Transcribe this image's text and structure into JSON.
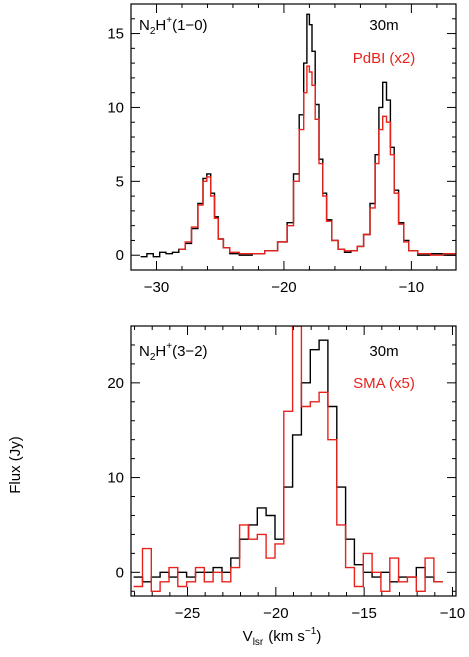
{
  "figure": {
    "ylabel": "Flux (Jy)",
    "xlabel": "V",
    "xlabel_sub": "lsr",
    "xlabel_units": "(km s",
    "xlabel_sup": "−1",
    "xlabel_close": ")"
  },
  "colors": {
    "single_dish": "#000000",
    "interferometer": "#e8231c"
  },
  "chart_data": [
    {
      "type": "line",
      "step": true,
      "label_main": "N",
      "label_sub": "2",
      "label_h": "H",
      "label_sup": "+",
      "label_trans": "(1−0)",
      "xlim": [
        -32,
        -6.5
      ],
      "ylim": [
        -1,
        17
      ],
      "xticks": [
        -30,
        -20,
        -10
      ],
      "xtick_labels": [
        "−30",
        "−20",
        "−10"
      ],
      "yticks": [
        0,
        5,
        10,
        15
      ],
      "ytick_labels": [
        "0",
        "5",
        "10",
        "15"
      ],
      "series": [
        {
          "name": "30m",
          "color": "#000000",
          "x": [
            -31,
            -30.5,
            -30,
            -29.5,
            -29,
            -28.5,
            -28,
            -27.5,
            -27,
            -26.5,
            -26.2,
            -25.9,
            -25.6,
            -25.3,
            -25,
            -24.5,
            -24,
            -23,
            -22,
            -21,
            -20,
            -19.5,
            -19,
            -18.6,
            -18.3,
            -18.1,
            -17.9,
            -17.7,
            -17.4,
            -17.1,
            -16.8,
            -16.5,
            -16,
            -15.5,
            -15,
            -14.5,
            -14,
            -13.5,
            -13,
            -12.7,
            -12.4,
            -12.1,
            -11.8,
            -11.5,
            -11.2,
            -10.8,
            -10.4,
            -10,
            -9,
            -8,
            -7
          ],
          "y": [
            -0.1,
            0.1,
            -0.1,
            0.2,
            0.1,
            0.2,
            0.4,
            0.8,
            1.8,
            3.5,
            5.2,
            5.5,
            4.2,
            2.6,
            1.1,
            0.5,
            0.1,
            0.0,
            0.1,
            0.3,
            0.9,
            2.2,
            5.5,
            9.5,
            13.0,
            16.3,
            15.6,
            13.8,
            10.2,
            6.5,
            4.2,
            2.4,
            1.0,
            0.4,
            0.2,
            0.3,
            0.6,
            1.4,
            3.5,
            6.8,
            10.0,
            11.7,
            10.5,
            7.3,
            4.4,
            2.2,
            1.0,
            0.3,
            0.0,
            0.1,
            0.0
          ]
        },
        {
          "name": "PdBI (x2)",
          "color": "#e8231c",
          "x": [
            -28,
            -27.5,
            -27,
            -26.5,
            -26.2,
            -25.9,
            -25.6,
            -25.3,
            -25,
            -24.5,
            -24,
            -23,
            -22,
            -21,
            -20,
            -19.5,
            -19,
            -18.6,
            -18.3,
            -18.1,
            -17.9,
            -17.7,
            -17.4,
            -17.1,
            -16.8,
            -16.5,
            -16,
            -15.5,
            -15,
            -14.5,
            -14,
            -13.5,
            -13,
            -12.7,
            -12.4,
            -12.1,
            -11.8,
            -11.5,
            -11.2,
            -10.8,
            -10.4,
            -10,
            -9,
            -8,
            -7
          ],
          "y": [
            0.4,
            0.9,
            1.9,
            3.4,
            5.0,
            5.3,
            4.0,
            2.5,
            1.1,
            0.5,
            0.2,
            0.1,
            0.1,
            0.3,
            0.9,
            2.0,
            5.0,
            8.5,
            11.0,
            12.8,
            12.4,
            11.5,
            9.2,
            6.2,
            4.0,
            2.3,
            1.0,
            0.4,
            0.3,
            0.3,
            0.6,
            1.4,
            3.2,
            6.2,
            8.5,
            9.4,
            9.0,
            6.8,
            4.2,
            2.1,
            0.9,
            0.3,
            0.1,
            0.0,
            0.1
          ]
        }
      ]
    },
    {
      "type": "line",
      "step": true,
      "label_main": "N",
      "label_sub": "2",
      "label_h": "H",
      "label_sup": "+",
      "label_trans": "(3−2)",
      "xlim": [
        -28.2,
        -9.8
      ],
      "ylim": [
        -2.5,
        26
      ],
      "xticks": [
        -25,
        -20,
        -15,
        -10
      ],
      "xtick_labels": [
        "−25",
        "−20",
        "−15",
        "−10"
      ],
      "yticks": [
        0,
        10,
        20
      ],
      "ytick_labels": [
        "0",
        "10",
        "20"
      ],
      "series": [
        {
          "name": "30m",
          "color": "#000000",
          "x": [
            -27.8,
            -27.3,
            -26.8,
            -26.3,
            -25.8,
            -25.3,
            -24.8,
            -24.3,
            -23.8,
            -23.3,
            -22.8,
            -22.3,
            -21.8,
            -21.3,
            -20.8,
            -20.3,
            -19.8,
            -19.3,
            -18.8,
            -18.3,
            -17.8,
            -17.3,
            -16.8,
            -16.3,
            -15.8,
            -15.3,
            -14.8,
            -14.3,
            -13.8,
            -13.3,
            -12.8,
            -12.3,
            -11.8,
            -11.3,
            -10.8
          ],
          "y": [
            -0.5,
            -1.0,
            -0.5,
            0.0,
            -0.5,
            0.0,
            -0.5,
            0.0,
            0.0,
            0.5,
            0.0,
            1.5,
            3.5,
            5.0,
            6.8,
            6.0,
            3.5,
            9.0,
            14.5,
            20.0,
            23.5,
            24.5,
            17.5,
            9.0,
            3.5,
            0.8,
            0.0,
            -0.5,
            0.0,
            -1.0,
            -0.5,
            -0.5,
            0.5,
            -0.5,
            -1.0
          ]
        },
        {
          "name": "SMA (x5)",
          "color": "#e8231c",
          "x": [
            -27.8,
            -27.3,
            -26.8,
            -26.3,
            -25.8,
            -25.3,
            -24.8,
            -24.3,
            -23.8,
            -23.3,
            -22.8,
            -22.3,
            -21.8,
            -21.3,
            -20.8,
            -20.3,
            -19.8,
            -19.3,
            -18.8,
            -18.3,
            -17.8,
            -17.3,
            -16.8,
            -16.3,
            -15.8,
            -15.3,
            -14.8,
            -14.3,
            -13.8,
            -13.3,
            -12.8,
            -12.3,
            -11.8,
            -11.3,
            -10.8
          ],
          "y": [
            -1.5,
            2.5,
            -2.0,
            -1.0,
            0.5,
            -1.5,
            -1.0,
            0.5,
            -1.0,
            0.0,
            -1.0,
            0.5,
            5.0,
            3.5,
            4.0,
            1.5,
            3.0,
            17.0,
            26.0,
            17.5,
            18.0,
            19.0,
            14.0,
            5.0,
            0.5,
            -1.5,
            2.0,
            0.0,
            -2.0,
            1.5,
            -1.0,
            -0.5,
            -2.0,
            1.5,
            -1.0
          ]
        }
      ]
    }
  ]
}
